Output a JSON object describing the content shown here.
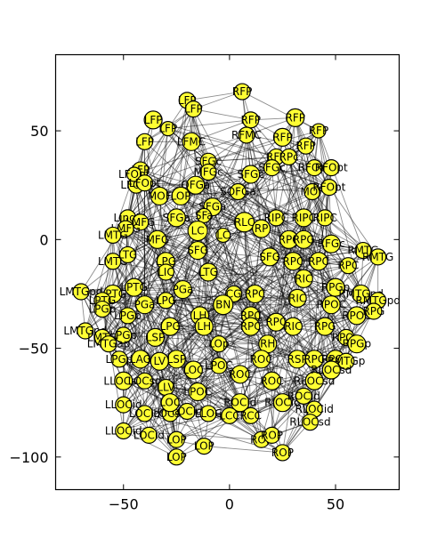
{
  "chart_data": {
    "type": "scatter",
    "title": "",
    "xlabel": "",
    "ylabel": "",
    "xlim": [
      -82,
      80
    ],
    "ylim": [
      -115,
      85
    ],
    "xticks": [
      -50,
      0,
      50
    ],
    "yticks": [
      -100,
      -50,
      0,
      50
    ],
    "xtick_labels": [
      "−50",
      "0",
      "50"
    ],
    "ytick_labels": [
      "−100",
      "−50",
      "0",
      "50"
    ],
    "grid": false,
    "legend": "none",
    "node_color": "#ffff33",
    "node_edge_color": "#000000",
    "edge_color": "#000000",
    "nodes": [
      {
        "label": "LFP",
        "x": -20,
        "y": 64,
        "r": 9
      },
      {
        "label": "LFP",
        "x": -17,
        "y": 60,
        "r": 9
      },
      {
        "label": "RFP",
        "x": 6,
        "y": 68,
        "r": 9
      },
      {
        "label": "RFP",
        "x": 10,
        "y": 55,
        "r": 9
      },
      {
        "label": "LFP",
        "x": -36,
        "y": 55,
        "r": 10
      },
      {
        "label": "LFP",
        "x": -29,
        "y": 51,
        "r": 8
      },
      {
        "label": "LFP",
        "x": -40,
        "y": 45,
        "r": 9
      },
      {
        "label": "LFP",
        "x": -42,
        "y": 32,
        "r": 9
      },
      {
        "label": "RFP",
        "x": 31,
        "y": 56,
        "r": 10
      },
      {
        "label": "RFP",
        "x": 42,
        "y": 50,
        "r": 8
      },
      {
        "label": "RFP",
        "x": 25,
        "y": 47,
        "r": 10
      },
      {
        "label": "RFP",
        "x": 36,
        "y": 43,
        "r": 9
      },
      {
        "label": "RFMC",
        "x": 8,
        "y": 48,
        "r": 9
      },
      {
        "label": "LFMC",
        "x": -18,
        "y": 45,
        "r": 10
      },
      {
        "label": "SFGc",
        "x": -10,
        "y": 36,
        "r": 9
      },
      {
        "label": "SFGc",
        "x": 10,
        "y": 30,
        "r": 10
      },
      {
        "label": "RFP",
        "x": 22,
        "y": 38,
        "r": 9
      },
      {
        "label": "RFOpt",
        "x": 40,
        "y": 33,
        "r": 9
      },
      {
        "label": "RFOpt",
        "x": 48,
        "y": 33,
        "r": 9
      },
      {
        "label": "LFOpt",
        "x": -44,
        "y": 25,
        "r": 9
      },
      {
        "label": "LFOpt",
        "x": -45,
        "y": 30,
        "r": 8
      },
      {
        "label": "MFGc",
        "x": -10,
        "y": 31,
        "r": 9
      },
      {
        "label": "LFOpt",
        "x": -40,
        "y": 26,
        "r": 9
      },
      {
        "label": "SFGc",
        "x": 20,
        "y": 33,
        "r": 9
      },
      {
        "label": "RPc",
        "x": 28,
        "y": 38,
        "r": 9
      },
      {
        "label": "MOF",
        "x": -33,
        "y": 20,
        "r": 10
      },
      {
        "label": "LOP",
        "x": -23,
        "y": 20,
        "r": 10
      },
      {
        "label": "OFGa",
        "x": -16,
        "y": 25,
        "r": 10
      },
      {
        "label": "SOFGa",
        "x": 4,
        "y": 22,
        "r": 9
      },
      {
        "label": "MOF",
        "x": 39,
        "y": 22,
        "r": 9
      },
      {
        "label": "RFOpt",
        "x": 47,
        "y": 24,
        "r": 9
      },
      {
        "label": "SFGa",
        "x": -8,
        "y": 15,
        "r": 10
      },
      {
        "label": "SFGa",
        "x": -25,
        "y": 10,
        "r": 10
      },
      {
        "label": "SFa",
        "x": -12,
        "y": 11,
        "r": 8
      },
      {
        "label": "RIPC",
        "x": 22,
        "y": 10,
        "r": 9
      },
      {
        "label": "RIPC",
        "x": 35,
        "y": 10,
        "r": 10
      },
      {
        "label": "RIPC",
        "x": 45,
        "y": 10,
        "r": 9
      },
      {
        "label": "LingL",
        "x": -48,
        "y": 10,
        "r": 9
      },
      {
        "label": "LMFG",
        "x": -42,
        "y": 8,
        "r": 9
      },
      {
        "label": "LMFG",
        "x": -49,
        "y": 5,
        "r": 9
      },
      {
        "label": "LMTG",
        "x": -55,
        "y": 2,
        "r": 9
      },
      {
        "label": "MFG",
        "x": -34,
        "y": 0,
        "r": 10
      },
      {
        "label": "LC",
        "x": -15,
        "y": 4,
        "r": 11
      },
      {
        "label": "LC",
        "x": -3,
        "y": 2,
        "r": 8
      },
      {
        "label": "RLC",
        "x": 7,
        "y": 8,
        "r": 11
      },
      {
        "label": "RP",
        "x": 15,
        "y": 5,
        "r": 10
      },
      {
        "label": "RPC",
        "x": 28,
        "y": 0,
        "r": 10
      },
      {
        "label": "RPG",
        "x": 35,
        "y": 0,
        "r": 10
      },
      {
        "label": "RFGc",
        "x": 48,
        "y": -2,
        "r": 10
      },
      {
        "label": "RMTG",
        "x": 63,
        "y": -5,
        "r": 9
      },
      {
        "label": "RMTG",
        "x": 70,
        "y": -8,
        "r": 9
      },
      {
        "label": "LMTG",
        "x": -55,
        "y": -10,
        "r": 9
      },
      {
        "label": "LTG",
        "x": -48,
        "y": -7,
        "r": 9
      },
      {
        "label": "LPG",
        "x": -30,
        "y": -10,
        "r": 10
      },
      {
        "label": "SFG",
        "x": -15,
        "y": -5,
        "r": 10
      },
      {
        "label": "SFG",
        "x": 19,
        "y": -8,
        "r": 10
      },
      {
        "label": "RPC",
        "x": 30,
        "y": -10,
        "r": 10
      },
      {
        "label": "RPC",
        "x": 42,
        "y": -10,
        "r": 10
      },
      {
        "label": "RPC",
        "x": 56,
        "y": -12,
        "r": 9
      },
      {
        "label": "LMTGpd",
        "x": -70,
        "y": -24,
        "r": 9
      },
      {
        "label": "LPTG",
        "x": -55,
        "y": -25,
        "r": 10
      },
      {
        "label": "LPTG",
        "x": -60,
        "y": -28,
        "r": 9
      },
      {
        "label": "LPTG",
        "x": -45,
        "y": -22,
        "r": 10
      },
      {
        "label": "PGa",
        "x": -22,
        "y": -23,
        "r": 10
      },
      {
        "label": "PGa",
        "x": -40,
        "y": -30,
        "r": 10
      },
      {
        "label": "LPG",
        "x": -30,
        "y": -28,
        "r": 9
      },
      {
        "label": "LTG",
        "x": -10,
        "y": -15,
        "r": 10
      },
      {
        "label": "CG",
        "x": 2,
        "y": -25,
        "r": 9
      },
      {
        "label": "RPC",
        "x": 12,
        "y": -25,
        "r": 10
      },
      {
        "label": "RIC",
        "x": 32,
        "y": -27,
        "r": 10
      },
      {
        "label": "RPGp",
        "x": 50,
        "y": -22,
        "r": 10
      },
      {
        "label": "RMTGpd",
        "x": 62,
        "y": -25,
        "r": 10
      },
      {
        "label": "RMTGpd",
        "x": 70,
        "y": -28,
        "r": 9
      },
      {
        "label": "LPGp",
        "x": -60,
        "y": -32,
        "r": 9
      },
      {
        "label": "LPGp",
        "x": -48,
        "y": -35,
        "r": 9
      },
      {
        "label": "BN",
        "x": -3,
        "y": -30,
        "r": 11
      },
      {
        "label": "LH",
        "x": -14,
        "y": -35,
        "r": 10
      },
      {
        "label": "LPG",
        "x": -28,
        "y": -40,
        "r": 10
      },
      {
        "label": "RPC",
        "x": 10,
        "y": -35,
        "r": 10
      },
      {
        "label": "RPC",
        "x": 22,
        "y": -38,
        "r": 10
      },
      {
        "label": "RPOC",
        "x": 48,
        "y": -30,
        "r": 10
      },
      {
        "label": "RPOC",
        "x": 60,
        "y": -35,
        "r": 10
      },
      {
        "label": "RPG",
        "x": 68,
        "y": -33,
        "r": 9
      },
      {
        "label": "LMTGpd",
        "x": -68,
        "y": -42,
        "r": 9
      },
      {
        "label": "LMTG",
        "x": -60,
        "y": -45,
        "r": 9
      },
      {
        "label": "LPGp",
        "x": -50,
        "y": -44,
        "r": 9
      },
      {
        "label": "LSP",
        "x": -35,
        "y": -45,
        "r": 10
      },
      {
        "label": "LH",
        "x": -12,
        "y": -40,
        "r": 10
      },
      {
        "label": "RPC",
        "x": 10,
        "y": -40,
        "r": 10
      },
      {
        "label": "LOp",
        "x": -5,
        "y": -48,
        "r": 9
      },
      {
        "label": "RH",
        "x": 18,
        "y": -48,
        "r": 10
      },
      {
        "label": "RPG",
        "x": 45,
        "y": -40,
        "r": 10
      },
      {
        "label": "RPOp",
        "x": 55,
        "y": -45,
        "r": 9
      },
      {
        "label": "RPGp",
        "x": 60,
        "y": -48,
        "r": 10
      },
      {
        "label": "LMTGap",
        "x": -57,
        "y": -48,
        "r": 9
      },
      {
        "label": "LPGp",
        "x": -52,
        "y": -55,
        "r": 9
      },
      {
        "label": "LAG",
        "x": -42,
        "y": -55,
        "r": 10
      },
      {
        "label": "LSP",
        "x": -25,
        "y": -55,
        "r": 10
      },
      {
        "label": "LV",
        "x": -33,
        "y": -56,
        "r": 10
      },
      {
        "label": "LOC",
        "x": -17,
        "y": -60,
        "r": 10
      },
      {
        "label": "LPOC",
        "x": -5,
        "y": -58,
        "r": 9
      },
      {
        "label": "ROC",
        "x": 15,
        "y": -55,
        "r": 10
      },
      {
        "label": "RSP",
        "x": 32,
        "y": -55,
        "r": 10
      },
      {
        "label": "RPC",
        "x": 40,
        "y": -55,
        "r": 10
      },
      {
        "label": "RPGp",
        "x": 50,
        "y": -55,
        "r": 10
      },
      {
        "label": "RMTGp",
        "x": 55,
        "y": -56,
        "r": 9
      },
      {
        "label": "LLOCsd",
        "x": -50,
        "y": -65,
        "r": 10
      },
      {
        "label": "LOCsd",
        "x": -40,
        "y": -65,
        "r": 9
      },
      {
        "label": "LLV",
        "x": -30,
        "y": -68,
        "r": 9
      },
      {
        "label": "LPOC",
        "x": -15,
        "y": -70,
        "r": 10
      },
      {
        "label": "ROC",
        "x": 5,
        "y": -62,
        "r": 10
      },
      {
        "label": "ROC",
        "x": 20,
        "y": -65,
        "r": 10
      },
      {
        "label": "RLOCsd",
        "x": 40,
        "y": -65,
        "r": 10
      },
      {
        "label": "RLOCsd",
        "x": 48,
        "y": -60,
        "r": 10
      },
      {
        "label": "LLOCid",
        "x": -50,
        "y": -76,
        "r": 9
      },
      {
        "label": "LOCid",
        "x": -40,
        "y": -80,
        "r": 9
      },
      {
        "label": "LOCsd",
        "x": -28,
        "y": -80,
        "r": 9
      },
      {
        "label": "LOCid",
        "x": -20,
        "y": -79,
        "r": 9
      },
      {
        "label": "LOC",
        "x": -28,
        "y": -75,
        "r": 10
      },
      {
        "label": "LLOC",
        "x": -10,
        "y": -80,
        "r": 9
      },
      {
        "label": "ROCid",
        "x": 5,
        "y": -75,
        "r": 10
      },
      {
        "label": "RIOCid",
        "x": 25,
        "y": -75,
        "r": 10
      },
      {
        "label": "ROCid",
        "x": 35,
        "y": -72,
        "r": 9
      },
      {
        "label": "RLOCid",
        "x": 40,
        "y": -78,
        "r": 9
      },
      {
        "label": "RLOCsd",
        "x": 38,
        "y": -84,
        "r": 9
      },
      {
        "label": "LOCid",
        "x": -38,
        "y": -90,
        "r": 9
      },
      {
        "label": "LLOCid",
        "x": -50,
        "y": -88,
        "r": 9
      },
      {
        "label": "LOP",
        "x": -25,
        "y": -92,
        "r": 9
      },
      {
        "label": "LOP",
        "x": -12,
        "y": -95,
        "r": 9
      },
      {
        "label": "LOP",
        "x": -25,
        "y": -100,
        "r": 9
      },
      {
        "label": "ROP",
        "x": 15,
        "y": -92,
        "r": 9
      },
      {
        "label": "ROP",
        "x": 25,
        "y": -98,
        "r": 9
      },
      {
        "label": "ROP",
        "x": 20,
        "y": -90,
        "r": 9
      },
      {
        "label": "LCC",
        "x": 0,
        "y": -81,
        "r": 9
      },
      {
        "label": "RCC",
        "x": 10,
        "y": -81,
        "r": 9
      },
      {
        "label": "RIC",
        "x": 30,
        "y": -40,
        "r": 10
      },
      {
        "label": "LIC",
        "x": -30,
        "y": -15,
        "r": 9
      },
      {
        "label": "RIC",
        "x": 35,
        "y": -18,
        "r": 10
      }
    ]
  }
}
